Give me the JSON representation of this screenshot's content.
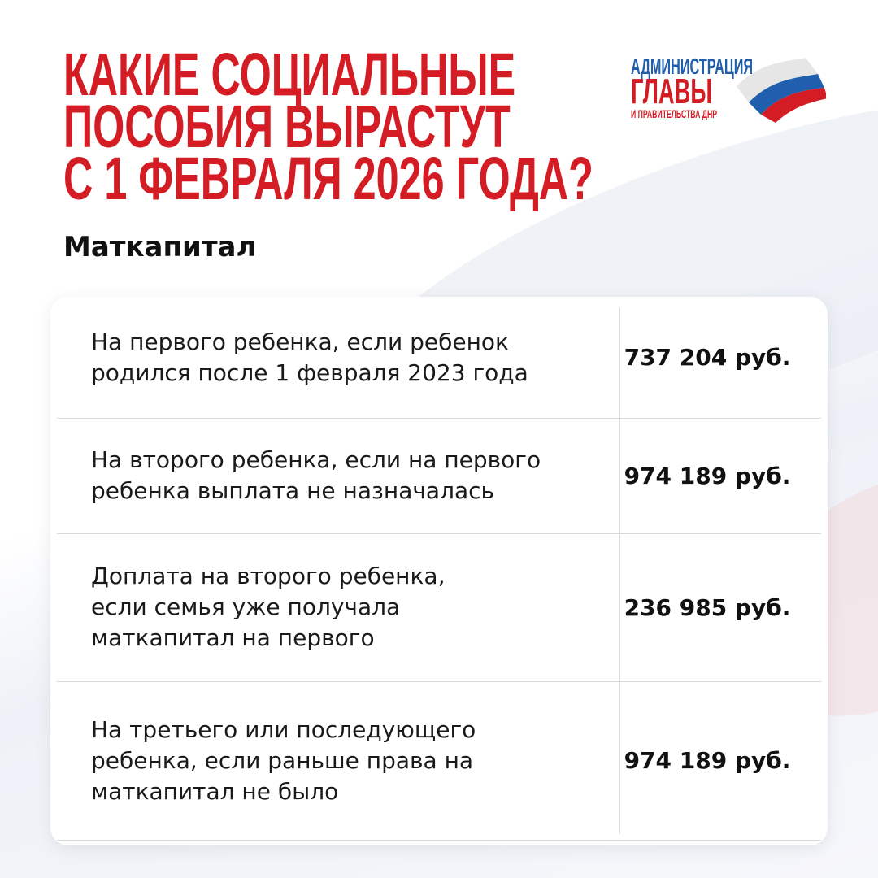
{
  "header": {
    "title_lines": [
      "Какие социальные",
      "пособия вырастут",
      "с 1 февраля 2026 года?"
    ],
    "subtitle": "Маткапитал"
  },
  "logo": {
    "line1": "АДМИНИСТРАЦИЯ",
    "line2": "ГЛАВЫ",
    "line3": "И ПРАВИТЕЛЬСТВА ДНР"
  },
  "colors": {
    "accent_red": "#d41c24",
    "accent_blue": "#1f5fae"
  },
  "table": {
    "rows": [
      {
        "description": "На первого ребенка, если ребенок родился после 1 февраля 2023 года",
        "value": "737 204 руб."
      },
      {
        "description": "На второго ребенка, если на первого ребенка выплата не назначалась",
        "value": "974 189 руб."
      },
      {
        "description": "Доплата на второго ребенка, если семья уже получала маткапитал на первого",
        "value": "236 985 руб."
      },
      {
        "description": "На третьего или последующего ребенка, если раньше права на маткапитал не было",
        "value": "974 189 руб."
      }
    ]
  }
}
